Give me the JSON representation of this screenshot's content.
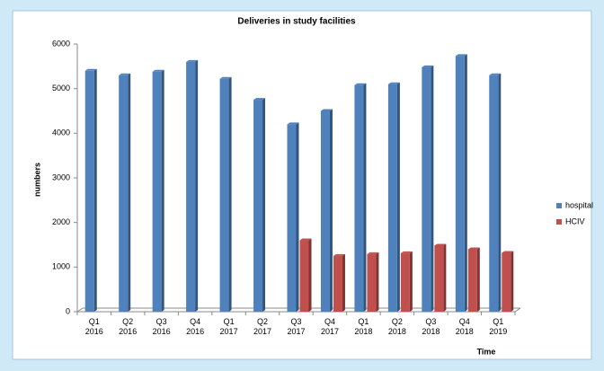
{
  "chart_data": {
    "type": "bar",
    "title": "Deliveries in study facilities",
    "x_label": "Time",
    "y_label": "numbers",
    "categories": [
      "Q1 2016",
      "Q2 2016",
      "Q3 2016",
      "Q4 2016",
      "Q1 2017",
      "Q2 2017",
      "Q3 2017",
      "Q4 2017",
      "Q1 2018",
      "Q2 2018",
      "Q3 2018",
      "Q4 2018",
      "Q1 2019"
    ],
    "series": [
      {
        "name": "hospital",
        "color": "#4f81bd",
        "values": [
          5400,
          5300,
          5380,
          5600,
          5220,
          4750,
          4200,
          4500,
          5080,
          5100,
          5480,
          5730,
          5300
        ]
      },
      {
        "name": "HCIV",
        "color": "#c0504d",
        "values": [
          null,
          null,
          null,
          null,
          null,
          null,
          1600,
          1250,
          1290,
          1310,
          1480,
          1400,
          1320
        ]
      }
    ],
    "ylim": [
      0,
      6000
    ],
    "yticks": [
      0,
      1000,
      2000,
      3000,
      4000,
      5000,
      6000
    ],
    "legend": "right"
  }
}
